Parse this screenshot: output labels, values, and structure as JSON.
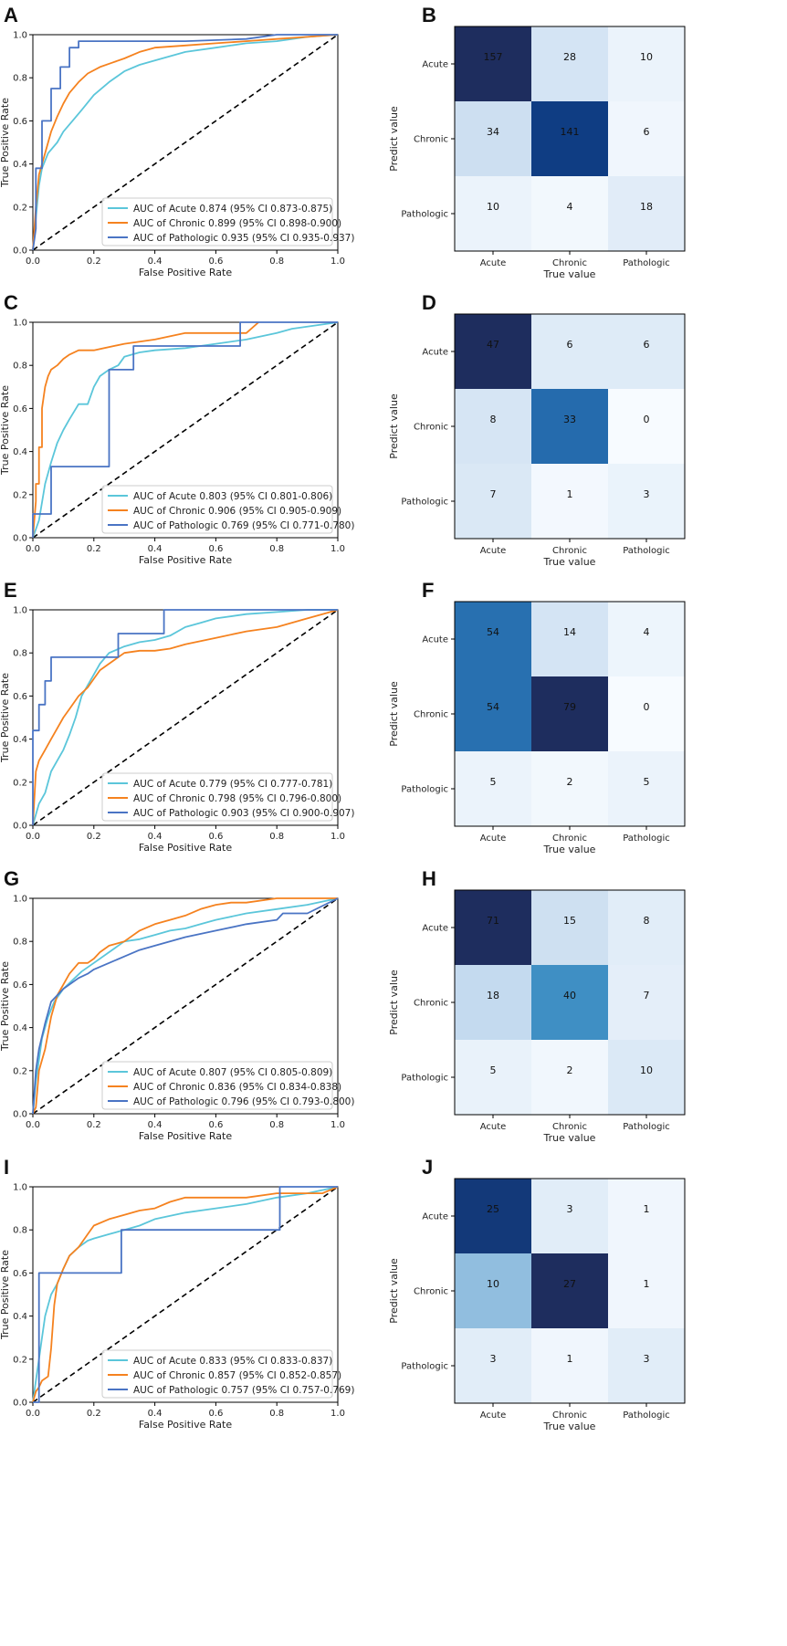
{
  "chart_data": [
    {
      "panel": "A",
      "type": "line",
      "xlabel": "False Positive Rate",
      "ylabel": "True Positive Rate",
      "xlim": [
        0,
        1
      ],
      "ylim": [
        0,
        1
      ],
      "xticks": [
        "0.0",
        "0.2",
        "0.4",
        "0.6",
        "0.8",
        "1.0"
      ],
      "yticks": [
        "0.0",
        "0.2",
        "0.4",
        "0.6",
        "0.8",
        "1.0"
      ],
      "legend_position": "lower-right",
      "series": [
        {
          "name": "AUC of Acute 0.874 (95% CI 0.873-0.875)",
          "color": "#5bc6da",
          "x": [
            0,
            0.01,
            0.02,
            0.03,
            0.05,
            0.08,
            0.1,
            0.13,
            0.16,
            0.2,
            0.25,
            0.3,
            0.35,
            0.4,
            0.5,
            0.6,
            0.7,
            0.8,
            0.9,
            1.0
          ],
          "y": [
            0,
            0.15,
            0.3,
            0.38,
            0.45,
            0.5,
            0.55,
            0.6,
            0.65,
            0.72,
            0.78,
            0.83,
            0.86,
            0.88,
            0.92,
            0.94,
            0.96,
            0.97,
            0.99,
            1.0
          ]
        },
        {
          "name": "AUC of Chronic 0.899 (95% CI 0.898-0.900)",
          "color": "#f5821f",
          "x": [
            0,
            0.01,
            0.02,
            0.04,
            0.06,
            0.08,
            0.1,
            0.12,
            0.15,
            0.18,
            0.22,
            0.26,
            0.3,
            0.35,
            0.4,
            0.5,
            0.6,
            0.7,
            0.8,
            0.9,
            1.0
          ],
          "y": [
            0,
            0.2,
            0.35,
            0.45,
            0.55,
            0.62,
            0.68,
            0.73,
            0.78,
            0.82,
            0.85,
            0.87,
            0.89,
            0.92,
            0.94,
            0.95,
            0.96,
            0.97,
            0.98,
            0.99,
            1.0
          ]
        },
        {
          "name": "AUC of Pathologic 0.935 (95% CI 0.935-0.937)",
          "color": "#4a74c4",
          "x": [
            0,
            0.01,
            0.01,
            0.03,
            0.03,
            0.06,
            0.06,
            0.09,
            0.09,
            0.12,
            0.12,
            0.15,
            0.15,
            0.2,
            0.3,
            0.5,
            0.7,
            0.8,
            1.0
          ],
          "y": [
            0,
            0.1,
            0.38,
            0.38,
            0.6,
            0.6,
            0.75,
            0.75,
            0.85,
            0.85,
            0.94,
            0.94,
            0.97,
            0.97,
            0.97,
            0.97,
            0.98,
            1.0,
            1.0
          ]
        }
      ]
    },
    {
      "panel": "B",
      "type": "heatmap",
      "xlabel": "True value",
      "ylabel": "Predict value",
      "categories": [
        "Acute",
        "Chronic",
        "Pathologic"
      ],
      "matrix": [
        [
          157,
          28,
          10
        ],
        [
          34,
          141,
          6
        ],
        [
          10,
          4,
          18
        ]
      ],
      "vmax": 157
    },
    {
      "panel": "C",
      "type": "line",
      "xlabel": "False Positive Rate",
      "ylabel": "True Positive Rate",
      "xlim": [
        0,
        1
      ],
      "ylim": [
        0,
        1
      ],
      "xticks": [
        "0.0",
        "0.2",
        "0.4",
        "0.6",
        "0.8",
        "1.0"
      ],
      "yticks": [
        "0.0",
        "0.2",
        "0.4",
        "0.6",
        "0.8",
        "1.0"
      ],
      "legend_position": "lower-right",
      "series": [
        {
          "name": "AUC of Acute 0.803 (95% CI 0.801-0.806)",
          "color": "#5bc6da",
          "x": [
            0,
            0.02,
            0.04,
            0.06,
            0.08,
            0.1,
            0.12,
            0.15,
            0.18,
            0.2,
            0.22,
            0.25,
            0.28,
            0.3,
            0.35,
            0.4,
            0.5,
            0.6,
            0.7,
            0.8,
            0.85,
            1.0
          ],
          "y": [
            0,
            0.08,
            0.25,
            0.35,
            0.44,
            0.5,
            0.55,
            0.62,
            0.62,
            0.7,
            0.75,
            0.78,
            0.8,
            0.84,
            0.86,
            0.87,
            0.88,
            0.9,
            0.92,
            0.95,
            0.97,
            1.0
          ]
        },
        {
          "name": "AUC of Chronic 0.906 (95% CI 0.905-0.909)",
          "color": "#f5821f",
          "x": [
            0,
            0.01,
            0.01,
            0.02,
            0.02,
            0.03,
            0.03,
            0.04,
            0.05,
            0.06,
            0.08,
            0.1,
            0.12,
            0.15,
            0.2,
            0.3,
            0.4,
            0.5,
            0.6,
            0.7,
            0.74
          ],
          "y": [
            0,
            0.17,
            0.25,
            0.25,
            0.42,
            0.42,
            0.6,
            0.7,
            0.75,
            0.78,
            0.8,
            0.83,
            0.85,
            0.87,
            0.87,
            0.9,
            0.92,
            0.95,
            0.95,
            0.95,
            1.0
          ]
        },
        {
          "name": "AUC of Pathologic 0.769 (95% CI 0.771-0.780)",
          "color": "#4a74c4",
          "x": [
            0,
            0.0,
            0.06,
            0.06,
            0.25,
            0.25,
            0.33,
            0.33,
            0.68,
            0.68,
            1.0
          ],
          "y": [
            0,
            0.11,
            0.11,
            0.33,
            0.33,
            0.78,
            0.78,
            0.89,
            0.89,
            1.0,
            1.0
          ]
        }
      ]
    },
    {
      "panel": "D",
      "type": "heatmap",
      "xlabel": "True value",
      "ylabel": "Predict value",
      "categories": [
        "Acute",
        "Chronic",
        "Pathologic"
      ],
      "matrix": [
        [
          47,
          6,
          6
        ],
        [
          8,
          33,
          0
        ],
        [
          7,
          1,
          3
        ]
      ],
      "vmax": 47
    },
    {
      "panel": "E",
      "type": "line",
      "xlabel": "False Positive Rate",
      "ylabel": "True Positive Rate",
      "xlim": [
        0,
        1
      ],
      "ylim": [
        0,
        1
      ],
      "xticks": [
        "0.0",
        "0.2",
        "0.4",
        "0.6",
        "0.8",
        "1.0"
      ],
      "yticks": [
        "0.0",
        "0.2",
        "0.4",
        "0.6",
        "0.8",
        "1.0"
      ],
      "legend_position": "lower-right",
      "series": [
        {
          "name": "AUC of Acute 0.779 (95% CI 0.777-0.781)",
          "color": "#5bc6da",
          "x": [
            0,
            0.01,
            0.02,
            0.04,
            0.06,
            0.08,
            0.1,
            0.12,
            0.14,
            0.16,
            0.18,
            0.2,
            0.22,
            0.25,
            0.3,
            0.35,
            0.4,
            0.45,
            0.5,
            0.55,
            0.6,
            0.7,
            0.8,
            0.9,
            1.0
          ],
          "y": [
            0,
            0.05,
            0.1,
            0.15,
            0.25,
            0.3,
            0.35,
            0.42,
            0.5,
            0.6,
            0.65,
            0.7,
            0.75,
            0.8,
            0.83,
            0.85,
            0.86,
            0.88,
            0.92,
            0.94,
            0.96,
            0.98,
            0.99,
            1.0,
            1.0
          ]
        },
        {
          "name": "AUC of Chronic 0.798 (95% CI 0.796-0.800)",
          "color": "#f5821f",
          "x": [
            0,
            0.01,
            0.02,
            0.04,
            0.06,
            0.08,
            0.1,
            0.12,
            0.15,
            0.18,
            0.2,
            0.22,
            0.25,
            0.28,
            0.3,
            0.35,
            0.4,
            0.45,
            0.5,
            0.6,
            0.7,
            0.8,
            0.9,
            0.95,
            1.0
          ],
          "y": [
            0,
            0.25,
            0.3,
            0.35,
            0.4,
            0.45,
            0.5,
            0.54,
            0.6,
            0.64,
            0.68,
            0.72,
            0.75,
            0.78,
            0.8,
            0.81,
            0.81,
            0.82,
            0.84,
            0.87,
            0.9,
            0.92,
            0.96,
            0.98,
            1.0
          ]
        },
        {
          "name": "AUC of Pathologic 0.903 (95% CI 0.900-0.907)",
          "color": "#4a74c4",
          "x": [
            0,
            0.0,
            0.02,
            0.02,
            0.04,
            0.04,
            0.06,
            0.06,
            0.28,
            0.28,
            0.43,
            0.43,
            1.0
          ],
          "y": [
            0,
            0.44,
            0.44,
            0.56,
            0.56,
            0.67,
            0.67,
            0.78,
            0.78,
            0.89,
            0.89,
            1.0,
            1.0
          ]
        }
      ]
    },
    {
      "panel": "F",
      "type": "heatmap",
      "xlabel": "True value",
      "ylabel": "Predict value",
      "categories": [
        "Acute",
        "Chronic",
        "Pathologic"
      ],
      "matrix": [
        [
          54,
          14,
          4
        ],
        [
          54,
          79,
          0
        ],
        [
          5,
          2,
          5
        ]
      ],
      "vmax": 79
    },
    {
      "panel": "G",
      "type": "line",
      "xlabel": "False Positive Rate",
      "ylabel": "True Positive Rate",
      "xlim": [
        0,
        1
      ],
      "ylim": [
        0,
        1
      ],
      "xticks": [
        "0.0",
        "0.2",
        "0.4",
        "0.6",
        "0.8",
        "1.0"
      ],
      "yticks": [
        "0.0",
        "0.2",
        "0.4",
        "0.6",
        "0.8",
        "1.0"
      ],
      "legend_position": "lower-right",
      "series": [
        {
          "name": "AUC of Acute 0.807 (95% CI 0.805-0.809)",
          "color": "#5bc6da",
          "x": [
            0,
            0.01,
            0.02,
            0.03,
            0.05,
            0.07,
            0.1,
            0.13,
            0.16,
            0.2,
            0.25,
            0.3,
            0.35,
            0.4,
            0.45,
            0.5,
            0.55,
            0.6,
            0.7,
            0.8,
            0.9,
            1.0
          ],
          "y": [
            0,
            0.15,
            0.25,
            0.35,
            0.45,
            0.52,
            0.58,
            0.62,
            0.66,
            0.7,
            0.75,
            0.8,
            0.81,
            0.83,
            0.85,
            0.86,
            0.88,
            0.9,
            0.93,
            0.95,
            0.97,
            1.0
          ]
        },
        {
          "name": "AUC of Chronic 0.836 (95% CI 0.834-0.838)",
          "color": "#f5821f",
          "x": [
            0,
            0.01,
            0.02,
            0.04,
            0.06,
            0.08,
            0.1,
            0.12,
            0.15,
            0.18,
            0.2,
            0.22,
            0.25,
            0.3,
            0.35,
            0.4,
            0.45,
            0.5,
            0.55,
            0.6,
            0.65,
            0.7,
            0.8,
            1.0
          ],
          "y": [
            0,
            0.03,
            0.2,
            0.3,
            0.45,
            0.55,
            0.6,
            0.65,
            0.7,
            0.7,
            0.72,
            0.75,
            0.78,
            0.8,
            0.85,
            0.88,
            0.9,
            0.92,
            0.95,
            0.97,
            0.98,
            0.98,
            1.0,
            1.0
          ]
        },
        {
          "name": "AUC of Pathologic 0.796 (95% CI 0.793-0.800)",
          "color": "#4a74c4",
          "x": [
            0,
            0.01,
            0.02,
            0.04,
            0.06,
            0.08,
            0.1,
            0.12,
            0.15,
            0.18,
            0.2,
            0.25,
            0.3,
            0.35,
            0.4,
            0.5,
            0.6,
            0.7,
            0.8,
            0.82,
            0.9,
            1.0
          ],
          "y": [
            0,
            0.2,
            0.3,
            0.42,
            0.52,
            0.55,
            0.58,
            0.6,
            0.63,
            0.65,
            0.67,
            0.7,
            0.73,
            0.76,
            0.78,
            0.82,
            0.85,
            0.88,
            0.9,
            0.93,
            0.93,
            1.0
          ]
        }
      ]
    },
    {
      "panel": "H",
      "type": "heatmap",
      "xlabel": "True value",
      "ylabel": "Predict value",
      "categories": [
        "Acute",
        "Chronic",
        "Pathologic"
      ],
      "matrix": [
        [
          71,
          15,
          8
        ],
        [
          18,
          40,
          7
        ],
        [
          5,
          2,
          10
        ]
      ],
      "vmax": 71
    },
    {
      "panel": "I",
      "type": "line",
      "xlabel": "False Positive Rate",
      "ylabel": "True Positive Rate",
      "xlim": [
        0,
        1
      ],
      "ylim": [
        0,
        1
      ],
      "xticks": [
        "0.0",
        "0.2",
        "0.4",
        "0.6",
        "0.8",
        "1.0"
      ],
      "yticks": [
        "0.0",
        "0.2",
        "0.4",
        "0.6",
        "0.8",
        "1.0"
      ],
      "legend_position": "lower-right",
      "series": [
        {
          "name": "AUC of Acute 0.833 (95% CI 0.833-0.837)",
          "color": "#5bc6da",
          "x": [
            0,
            0.01,
            0.02,
            0.03,
            0.04,
            0.05,
            0.06,
            0.08,
            0.1,
            0.12,
            0.15,
            0.18,
            0.2,
            0.25,
            0.3,
            0.35,
            0.4,
            0.5,
            0.6,
            0.7,
            0.8,
            0.9,
            1.0
          ],
          "y": [
            0,
            0.1,
            0.2,
            0.3,
            0.4,
            0.45,
            0.5,
            0.55,
            0.62,
            0.68,
            0.72,
            0.75,
            0.76,
            0.78,
            0.8,
            0.82,
            0.85,
            0.88,
            0.9,
            0.92,
            0.95,
            0.97,
            1.0
          ]
        },
        {
          "name": "AUC of Chronic 0.857 (95% CI 0.852-0.857)",
          "color": "#f5821f",
          "x": [
            0,
            0.01,
            0.02,
            0.03,
            0.05,
            0.06,
            0.07,
            0.08,
            0.1,
            0.12,
            0.15,
            0.18,
            0.2,
            0.25,
            0.3,
            0.35,
            0.4,
            0.45,
            0.5,
            0.6,
            0.7,
            0.8,
            0.95,
            1.0
          ],
          "y": [
            0,
            0.05,
            0.07,
            0.1,
            0.12,
            0.25,
            0.45,
            0.55,
            0.62,
            0.68,
            0.72,
            0.78,
            0.82,
            0.85,
            0.87,
            0.89,
            0.9,
            0.93,
            0.95,
            0.95,
            0.95,
            0.97,
            0.97,
            1.0
          ]
        },
        {
          "name": "AUC of Pathologic 0.757 (95% CI 0.757-0.769)",
          "color": "#4a74c4",
          "x": [
            0,
            0.02,
            0.02,
            0.08,
            0.08,
            0.29,
            0.29,
            0.8,
            0.8,
            0.81,
            0.81,
            1.0
          ],
          "y": [
            0,
            0.0,
            0.6,
            0.6,
            0.6,
            0.6,
            0.8,
            0.8,
            0.8,
            0.8,
            1.0,
            1.0
          ]
        }
      ]
    },
    {
      "panel": "J",
      "type": "heatmap",
      "xlabel": "True value",
      "ylabel": "Predict value",
      "categories": [
        "Acute",
        "Chronic",
        "Pathologic"
      ],
      "matrix": [
        [
          25,
          3,
          1
        ],
        [
          10,
          27,
          1
        ],
        [
          3,
          1,
          3
        ]
      ],
      "vmax": 27
    }
  ]
}
